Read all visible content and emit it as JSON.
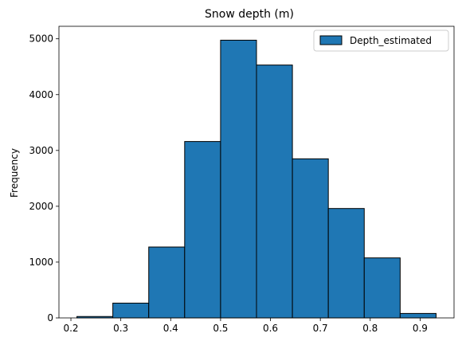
{
  "chart_data": {
    "type": "bar",
    "subtype": "histogram",
    "title": "Snow depth (m)",
    "xlabel": "",
    "ylabel": "Frequency",
    "bins": [
      {
        "start": 0.212,
        "end": 0.284,
        "count": 25
      },
      {
        "start": 0.284,
        "end": 0.356,
        "count": 265
      },
      {
        "start": 0.356,
        "end": 0.428,
        "count": 1270
      },
      {
        "start": 0.428,
        "end": 0.5,
        "count": 3160
      },
      {
        "start": 0.5,
        "end": 0.572,
        "count": 4975
      },
      {
        "start": 0.572,
        "end": 0.644,
        "count": 4530
      },
      {
        "start": 0.644,
        "end": 0.716,
        "count": 2850
      },
      {
        "start": 0.716,
        "end": 0.788,
        "count": 1960
      },
      {
        "start": 0.788,
        "end": 0.86,
        "count": 1075
      },
      {
        "start": 0.86,
        "end": 0.932,
        "count": 80
      }
    ],
    "series": [
      {
        "name": "Depth_estimated",
        "color": "#1f77b4"
      }
    ],
    "edge_color": "#000000",
    "xlim": [
      0.176,
      0.968
    ],
    "ylim": [
      0,
      5224
    ],
    "xticks": [
      0.2,
      0.3,
      0.4,
      0.5,
      0.6,
      0.7,
      0.8,
      0.9
    ],
    "xtick_labels": [
      "0.2",
      "0.3",
      "0.4",
      "0.5",
      "0.6",
      "0.7",
      "0.8",
      "0.9"
    ],
    "yticks": [
      0,
      1000,
      2000,
      3000,
      4000,
      5000
    ],
    "ytick_labels": [
      "0",
      "1000",
      "2000",
      "3000",
      "4000",
      "5000"
    ],
    "grid": false,
    "legend_position": "top-right"
  }
}
